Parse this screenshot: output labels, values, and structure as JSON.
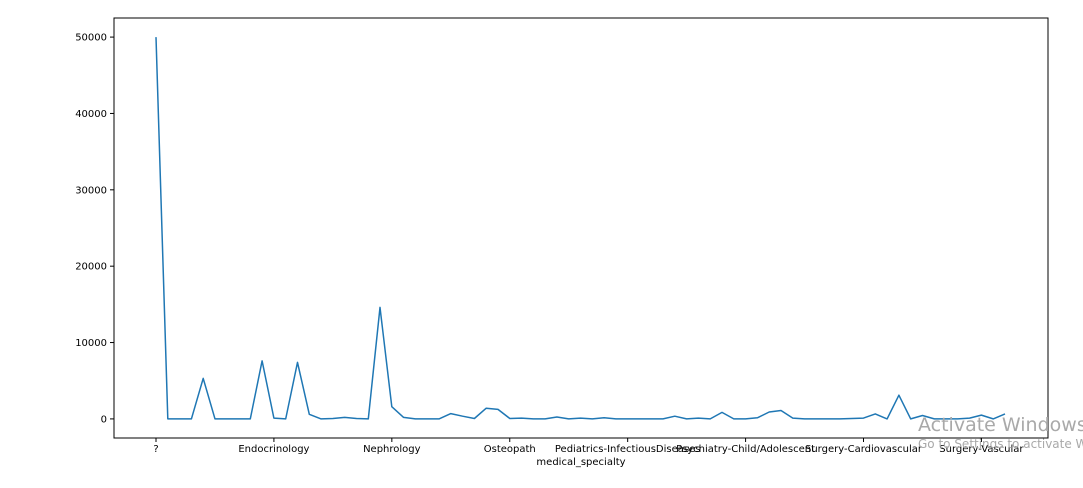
{
  "chart_data": {
    "type": "line",
    "xlabel": "medical_specialty",
    "ylabel": "",
    "title": "",
    "ylim": [
      -2500,
      52500
    ],
    "grid": false,
    "line_color": "#1f77b4",
    "yticks": [
      0,
      10000,
      20000,
      30000,
      40000,
      50000
    ],
    "xtick_labels": [
      {
        "index": 0,
        "label": "?"
      },
      {
        "index": 10,
        "label": "Endocrinology"
      },
      {
        "index": 20,
        "label": "Nephrology"
      },
      {
        "index": 30,
        "label": "Osteopath"
      },
      {
        "index": 40,
        "label": "Pediatrics-InfectiousDiseases"
      },
      {
        "index": 50,
        "label": "Psychiatry-Child/Adolescent"
      },
      {
        "index": 60,
        "label": "Surgery-Cardiovascular"
      },
      {
        "index": 70,
        "label": "Surgery-Vascular"
      }
    ],
    "series": [
      {
        "values": [
          50000,
          0,
          0,
          0,
          5300,
          0,
          0,
          0,
          0,
          7600,
          100,
          0,
          7400,
          600,
          0,
          50,
          200,
          50,
          0,
          14600,
          1600,
          200,
          0,
          0,
          0,
          700,
          350,
          50,
          1400,
          1250,
          50,
          100,
          0,
          0,
          250,
          0,
          100,
          0,
          150,
          0,
          0,
          0,
          0,
          0,
          350,
          0,
          100,
          0,
          850,
          0,
          0,
          150,
          900,
          1100,
          100,
          0,
          0,
          0,
          0,
          50,
          100,
          650,
          0,
          3100,
          0,
          450,
          0,
          0,
          0,
          100,
          500,
          0,
          650
        ]
      }
    ]
  },
  "watermark": {
    "title": "Activate Windows",
    "subtitle": "Go to Settings to activate Windows."
  }
}
